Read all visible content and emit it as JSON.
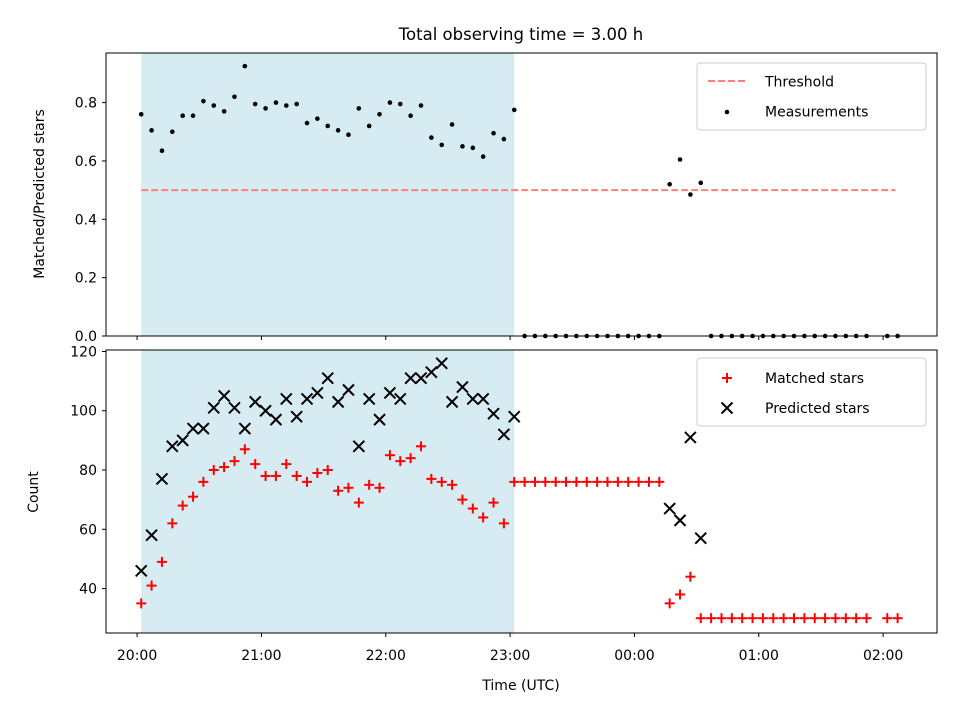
{
  "chart_data": [
    {
      "type": "scatter",
      "title": "Total observing time = 3.00 h",
      "xlabel": "",
      "ylabel": "Matched/Predicted stars",
      "ylim": [
        0,
        0.97
      ],
      "xlim": [
        "19:45",
        "02:26"
      ],
      "yticks": [
        "0.0",
        "0.2",
        "0.4",
        "0.6",
        "0.8"
      ],
      "shaded_region": {
        "start": "20:02",
        "end": "23:02",
        "color": "#add8e6"
      },
      "legend_position": "top-right",
      "series": [
        {
          "name": "Threshold",
          "style": "dashed-line",
          "color": "#ff7f7f",
          "points": [
            [
              "20:02",
              0.5
            ],
            [
              "02:06",
              0.5
            ]
          ]
        },
        {
          "name": "Measurements",
          "style": "dot",
          "color": "#000000",
          "points": [
            [
              "20:02",
              0.76
            ],
            [
              "20:07",
              0.705
            ],
            [
              "20:12",
              0.635
            ],
            [
              "20:17",
              0.7
            ],
            [
              "20:22",
              0.755
            ],
            [
              "20:27",
              0.755
            ],
            [
              "20:32",
              0.805
            ],
            [
              "20:37",
              0.79
            ],
            [
              "20:42",
              0.77
            ],
            [
              "20:47",
              0.82
            ],
            [
              "20:52",
              0.925
            ],
            [
              "20:57",
              0.795
            ],
            [
              "21:02",
              0.78
            ],
            [
              "21:07",
              0.8
            ],
            [
              "21:12",
              0.79
            ],
            [
              "21:17",
              0.795
            ],
            [
              "21:22",
              0.73
            ],
            [
              "21:27",
              0.745
            ],
            [
              "21:32",
              0.72
            ],
            [
              "21:37",
              0.705
            ],
            [
              "21:42",
              0.69
            ],
            [
              "21:47",
              0.78
            ],
            [
              "21:52",
              0.72
            ],
            [
              "21:57",
              0.76
            ],
            [
              "22:02",
              0.8
            ],
            [
              "22:07",
              0.795
            ],
            [
              "22:12",
              0.755
            ],
            [
              "22:17",
              0.79
            ],
            [
              "22:22",
              0.68
            ],
            [
              "22:27",
              0.655
            ],
            [
              "22:32",
              0.725
            ],
            [
              "22:37",
              0.65
            ],
            [
              "22:42",
              0.645
            ],
            [
              "22:47",
              0.615
            ],
            [
              "22:52",
              0.695
            ],
            [
              "22:57",
              0.675
            ],
            [
              "23:02",
              0.775
            ],
            [
              "23:07",
              0
            ],
            [
              "23:12",
              0
            ],
            [
              "23:17",
              0
            ],
            [
              "23:22",
              0
            ],
            [
              "23:27",
              0
            ],
            [
              "23:32",
              0
            ],
            [
              "23:37",
              0
            ],
            [
              "23:42",
              0
            ],
            [
              "23:47",
              0
            ],
            [
              "23:52",
              0
            ],
            [
              "23:57",
              0
            ],
            [
              "00:02",
              0
            ],
            [
              "00:07",
              0
            ],
            [
              "00:12",
              0
            ],
            [
              "00:17",
              0.52
            ],
            [
              "00:22",
              0.605
            ],
            [
              "00:27",
              0.485
            ],
            [
              "00:32",
              0.525
            ],
            [
              "00:37",
              0
            ],
            [
              "00:42",
              0
            ],
            [
              "00:47",
              0
            ],
            [
              "00:52",
              0
            ],
            [
              "00:57",
              0
            ],
            [
              "01:02",
              0
            ],
            [
              "01:07",
              0
            ],
            [
              "01:12",
              0
            ],
            [
              "01:17",
              0
            ],
            [
              "01:22",
              0
            ],
            [
              "01:27",
              0
            ],
            [
              "01:32",
              0
            ],
            [
              "01:37",
              0
            ],
            [
              "01:42",
              0
            ],
            [
              "01:47",
              0
            ],
            [
              "01:52",
              0
            ],
            [
              "02:02",
              0
            ],
            [
              "02:07",
              0
            ]
          ]
        }
      ]
    },
    {
      "type": "scatter",
      "title": "",
      "xlabel": "Time (UTC)",
      "ylabel": "Count",
      "ylim": [
        25,
        120.5
      ],
      "xlim": [
        "19:45",
        "02:26"
      ],
      "yticks": [
        "40",
        "60",
        "80",
        "100",
        "120"
      ],
      "xticks": [
        "20:00",
        "21:00",
        "22:00",
        "23:00",
        "00:00",
        "01:00",
        "02:00"
      ],
      "shaded_region": {
        "start": "20:02",
        "end": "23:02",
        "color": "#add8e6"
      },
      "legend_position": "top-right",
      "series": [
        {
          "name": "Matched stars",
          "style": "plus",
          "color": "#ff0000",
          "points": [
            [
              "20:02",
              35
            ],
            [
              "20:07",
              41
            ],
            [
              "20:12",
              49
            ],
            [
              "20:17",
              62
            ],
            [
              "20:22",
              68
            ],
            [
              "20:27",
              71
            ],
            [
              "20:32",
              76
            ],
            [
              "20:37",
              80
            ],
            [
              "20:42",
              81
            ],
            [
              "20:47",
              83
            ],
            [
              "20:52",
              87
            ],
            [
              "20:57",
              82
            ],
            [
              "21:02",
              78
            ],
            [
              "21:07",
              78
            ],
            [
              "21:12",
              82
            ],
            [
              "21:17",
              78
            ],
            [
              "21:22",
              76
            ],
            [
              "21:27",
              79
            ],
            [
              "21:32",
              80
            ],
            [
              "21:37",
              73
            ],
            [
              "21:42",
              74
            ],
            [
              "21:47",
              69
            ],
            [
              "21:52",
              75
            ],
            [
              "21:57",
              74
            ],
            [
              "22:02",
              85
            ],
            [
              "22:07",
              83
            ],
            [
              "22:12",
              84
            ],
            [
              "22:17",
              88
            ],
            [
              "22:22",
              77
            ],
            [
              "22:27",
              76
            ],
            [
              "22:32",
              75
            ],
            [
              "22:37",
              70
            ],
            [
              "22:42",
              67
            ],
            [
              "22:47",
              64
            ],
            [
              "22:52",
              69
            ],
            [
              "22:57",
              62
            ],
            [
              "23:02",
              76
            ],
            [
              "23:07",
              76
            ],
            [
              "23:12",
              76
            ],
            [
              "23:17",
              76
            ],
            [
              "23:22",
              76
            ],
            [
              "23:27",
              76
            ],
            [
              "23:32",
              76
            ],
            [
              "23:37",
              76
            ],
            [
              "23:42",
              76
            ],
            [
              "23:47",
              76
            ],
            [
              "23:52",
              76
            ],
            [
              "23:57",
              76
            ],
            [
              "00:02",
              76
            ],
            [
              "00:07",
              76
            ],
            [
              "00:12",
              76
            ],
            [
              "00:17",
              35
            ],
            [
              "00:22",
              38
            ],
            [
              "00:27",
              44
            ],
            [
              "00:32",
              30
            ],
            [
              "00:37",
              30
            ],
            [
              "00:42",
              30
            ],
            [
              "00:47",
              30
            ],
            [
              "00:52",
              30
            ],
            [
              "00:57",
              30
            ],
            [
              "01:02",
              30
            ],
            [
              "01:07",
              30
            ],
            [
              "01:12",
              30
            ],
            [
              "01:17",
              30
            ],
            [
              "01:22",
              30
            ],
            [
              "01:27",
              30
            ],
            [
              "01:32",
              30
            ],
            [
              "01:37",
              30
            ],
            [
              "01:42",
              30
            ],
            [
              "01:47",
              30
            ],
            [
              "01:52",
              30
            ],
            [
              "02:02",
              30
            ],
            [
              "02:07",
              30
            ]
          ]
        },
        {
          "name": "Predicted stars",
          "style": "x",
          "color": "#000000",
          "points": [
            [
              "20:02",
              46
            ],
            [
              "20:07",
              58
            ],
            [
              "20:12",
              77
            ],
            [
              "20:17",
              88
            ],
            [
              "20:22",
              90
            ],
            [
              "20:27",
              94
            ],
            [
              "20:32",
              94
            ],
            [
              "20:37",
              101
            ],
            [
              "20:42",
              105
            ],
            [
              "20:47",
              101
            ],
            [
              "20:52",
              94
            ],
            [
              "20:57",
              103
            ],
            [
              "21:02",
              100
            ],
            [
              "21:07",
              97
            ],
            [
              "21:12",
              104
            ],
            [
              "21:17",
              98
            ],
            [
              "21:22",
              104
            ],
            [
              "21:27",
              106
            ],
            [
              "21:32",
              111
            ],
            [
              "21:37",
              103
            ],
            [
              "21:42",
              107
            ],
            [
              "21:47",
              88
            ],
            [
              "21:52",
              104
            ],
            [
              "21:57",
              97
            ],
            [
              "22:02",
              106
            ],
            [
              "22:07",
              104
            ],
            [
              "22:12",
              111
            ],
            [
              "22:17",
              111
            ],
            [
              "22:22",
              113
            ],
            [
              "22:27",
              116
            ],
            [
              "22:32",
              103
            ],
            [
              "22:37",
              108
            ],
            [
              "22:42",
              104
            ],
            [
              "22:47",
              104
            ],
            [
              "22:52",
              99
            ],
            [
              "22:57",
              92
            ],
            [
              "23:02",
              98
            ],
            [
              "00:17",
              67
            ],
            [
              "00:22",
              63
            ],
            [
              "00:27",
              91
            ],
            [
              "00:32",
              57
            ]
          ]
        }
      ]
    }
  ]
}
